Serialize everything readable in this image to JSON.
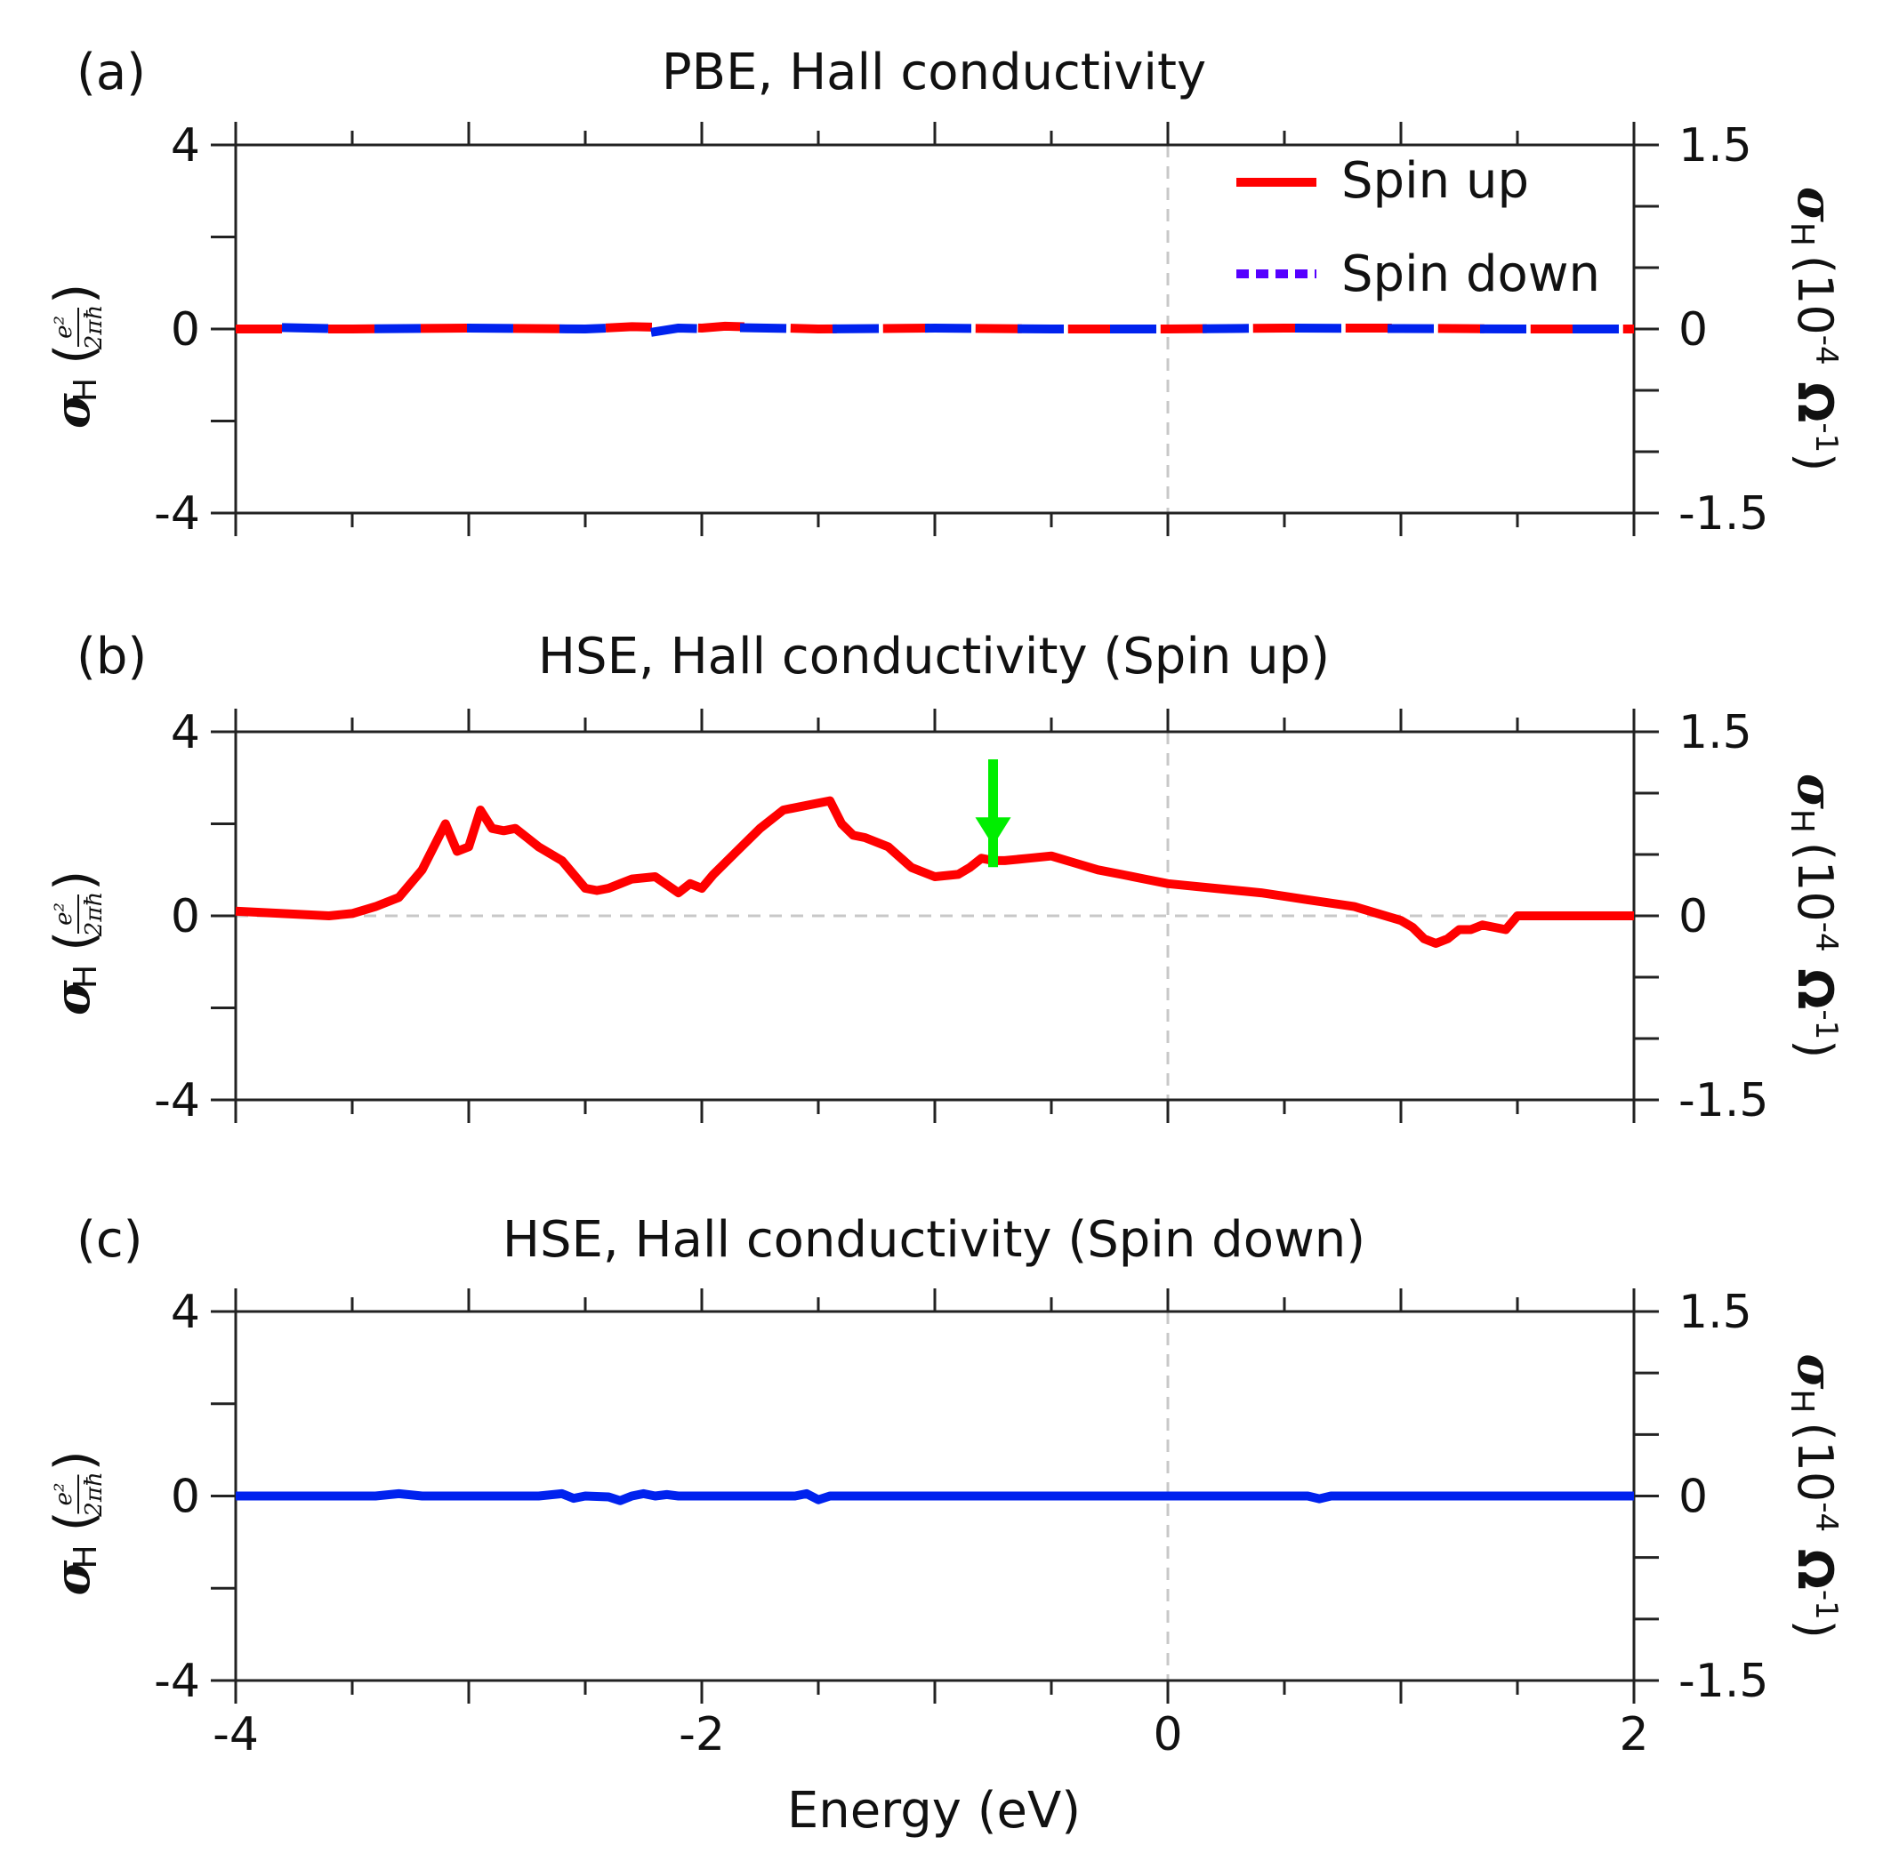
{
  "figure": {
    "xlabel": "Energy (eV)",
    "ylabel_left": {
      "symbol": "σ",
      "subscript": "H",
      "open_paren": "(",
      "numerator": "e²",
      "denominator": "2πħ",
      "close_paren": ")"
    },
    "ylabel_right": {
      "symbol": "σ",
      "subscript": "H",
      "units": "(10-4 Ω-1)",
      "units_parts": [
        "(10",
        "-4",
        " Ω",
        "-1",
        ")"
      ]
    },
    "colors": {
      "spin_up": "#ff0000",
      "spin_down": "#0022ee",
      "spin_down_legend": "#5500ff",
      "arrow": "#00ee00",
      "zero_line": "#c8c8c8",
      "axis": "#222222"
    }
  },
  "chart_data": [
    {
      "type": "line",
      "panel_label": "(a)",
      "title": "PBE, Hall conductivity",
      "xlim": [
        -4,
        2
      ],
      "ylim": [
        -4,
        4
      ],
      "ylim_right": [
        -1.5,
        1.5
      ],
      "xticks": [
        -4,
        -2,
        0,
        2
      ],
      "yticks": [
        -4,
        0,
        4
      ],
      "ytick_labels": [
        "-4",
        "0",
        "4"
      ],
      "yticks_right": [
        -1.5,
        0,
        1.5
      ],
      "ytick_right_labels": [
        "-1.5",
        "0",
        "1.5"
      ],
      "legend": {
        "placement": "top-right",
        "entries": [
          {
            "label": "Spin up",
            "style": "solid"
          },
          {
            "label": "Spin down",
            "style": "dotted"
          }
        ]
      },
      "series": [
        {
          "name": "Spin up",
          "style": "dashed",
          "color": "#ff0000",
          "x": [
            -4,
            -3.5,
            -3,
            -2.5,
            -2.3,
            -2.2,
            -2.0,
            -1.9,
            -1.5,
            -1,
            -0.5,
            0,
            0.5,
            1,
            1.5,
            2
          ],
          "y": [
            0,
            0,
            0.02,
            0,
            0.05,
            0.04,
            0.02,
            0.06,
            0,
            0.02,
            0,
            0,
            0.02,
            0.02,
            0,
            0
          ]
        },
        {
          "name": "Spin down",
          "style": "dashed",
          "color": "#0022ee",
          "x": [
            -4,
            -3.5,
            -3,
            -2.5,
            -2.35,
            -2.25,
            -2.1,
            -1.95,
            -1.9,
            -1.85,
            -1.5,
            -1,
            -0.5,
            0,
            0.5,
            1,
            1.5,
            2
          ],
          "y": [
            0.05,
            0,
            0.02,
            0,
            0.03,
            -0.1,
            0.02,
            0,
            -0.12,
            0.03,
            0,
            0.02,
            0,
            0,
            0.02,
            0.01,
            0,
            0
          ]
        }
      ],
      "zero_lines": {
        "vertical_x": 0,
        "horizontal_y": null
      }
    },
    {
      "type": "line",
      "panel_label": "(b)",
      "title": "HSE, Hall conductivity (Spin up)",
      "xlim": [
        -4,
        2
      ],
      "ylim": [
        -4,
        4
      ],
      "ylim_right": [
        -1.5,
        1.5
      ],
      "xticks": [
        -4,
        -2,
        0,
        2
      ],
      "yticks": [
        -4,
        0,
        4
      ],
      "ytick_labels": [
        "-4",
        "0",
        "4"
      ],
      "yticks_right": [
        -1.5,
        0,
        1.5
      ],
      "ytick_right_labels": [
        "-1.5",
        "0",
        "1.5"
      ],
      "annotation": {
        "type": "arrow",
        "x": -0.75,
        "y_tip": 1.6,
        "y_tail": 3.4
      },
      "series": [
        {
          "name": "Spin up",
          "style": "solid",
          "color": "#ff0000",
          "x": [
            -4,
            -3.8,
            -3.6,
            -3.5,
            -3.4,
            -3.3,
            -3.2,
            -3.15,
            -3.1,
            -3.05,
            -3.0,
            -2.95,
            -2.9,
            -2.85,
            -2.8,
            -2.75,
            -2.7,
            -2.6,
            -2.5,
            -2.45,
            -2.4,
            -2.35,
            -2.3,
            -2.2,
            -2.1,
            -2.05,
            -2.0,
            -1.95,
            -1.85,
            -1.75,
            -1.65,
            -1.55,
            -1.45,
            -1.4,
            -1.35,
            -1.3,
            -1.2,
            -1.1,
            -1.0,
            -0.9,
            -0.85,
            -0.8,
            -0.75,
            -0.7,
            -0.6,
            -0.5,
            -0.4,
            -0.3,
            -0.2,
            -0.1,
            0,
            0.2,
            0.4,
            0.6,
            0.8,
            1.0,
            1.05,
            1.1,
            1.15,
            1.2,
            1.25,
            1.3,
            1.35,
            1.4,
            1.45,
            1.5,
            1.6,
            2
          ],
          "y": [
            0.1,
            0.05,
            0.0,
            0.05,
            0.2,
            0.4,
            1.0,
            1.5,
            2.0,
            1.4,
            1.5,
            2.3,
            1.9,
            1.85,
            1.9,
            1.7,
            1.5,
            1.2,
            0.6,
            0.55,
            0.6,
            0.7,
            0.8,
            0.85,
            0.5,
            0.7,
            0.6,
            0.9,
            1.4,
            1.9,
            2.3,
            2.4,
            2.5,
            2.0,
            1.75,
            1.7,
            1.5,
            1.05,
            0.85,
            0.9,
            1.05,
            1.25,
            1.2,
            1.2,
            1.25,
            1.3,
            1.15,
            1.0,
            0.9,
            0.8,
            0.7,
            0.6,
            0.5,
            0.35,
            0.2,
            -0.1,
            -0.25,
            -0.5,
            -0.6,
            -0.5,
            -0.3,
            -0.3,
            -0.2,
            -0.25,
            -0.3,
            0,
            0,
            0
          ]
        }
      ],
      "zero_lines": {
        "vertical_x": 0,
        "horizontal_y": 0
      }
    },
    {
      "type": "line",
      "panel_label": "(c)",
      "title": "HSE, Hall conductivity (Spin down)",
      "xlim": [
        -4,
        2
      ],
      "ylim": [
        -4,
        4
      ],
      "ylim_right": [
        -1.5,
        1.5
      ],
      "xticks": [
        -4,
        -2,
        0,
        2
      ],
      "xtick_labels": [
        "-4",
        "-2",
        "0",
        "2"
      ],
      "yticks": [
        -4,
        0,
        4
      ],
      "ytick_labels": [
        "-4",
        "0",
        "4"
      ],
      "yticks_right": [
        -1.5,
        0,
        1.5
      ],
      "ytick_right_labels": [
        "-1.5",
        "0",
        "1.5"
      ],
      "xlabel": "Energy (eV)",
      "series": [
        {
          "name": "Spin down",
          "style": "solid",
          "color": "#0022ee",
          "x": [
            -4,
            -3.4,
            -3.3,
            -3.2,
            -2.7,
            -2.6,
            -2.55,
            -2.5,
            -2.4,
            -2.35,
            -2.3,
            -2.25,
            -2.2,
            -2.15,
            -2.1,
            -2.0,
            -1.6,
            -1.55,
            -1.5,
            -1.45,
            -1.4,
            -1.0,
            -0.5,
            0,
            0.5,
            0.6,
            0.65,
            0.7,
            1.0,
            2
          ],
          "y": [
            0,
            0,
            0.05,
            0,
            0,
            0.05,
            -0.05,
            0,
            -0.02,
            -0.1,
            0,
            0.05,
            0,
            0.03,
            0,
            0,
            0,
            0.05,
            -0.08,
            0,
            0,
            0,
            0,
            0,
            0,
            0,
            -0.06,
            0,
            0,
            0
          ]
        }
      ],
      "zero_lines": {
        "vertical_x": 0,
        "horizontal_y": null
      }
    }
  ]
}
